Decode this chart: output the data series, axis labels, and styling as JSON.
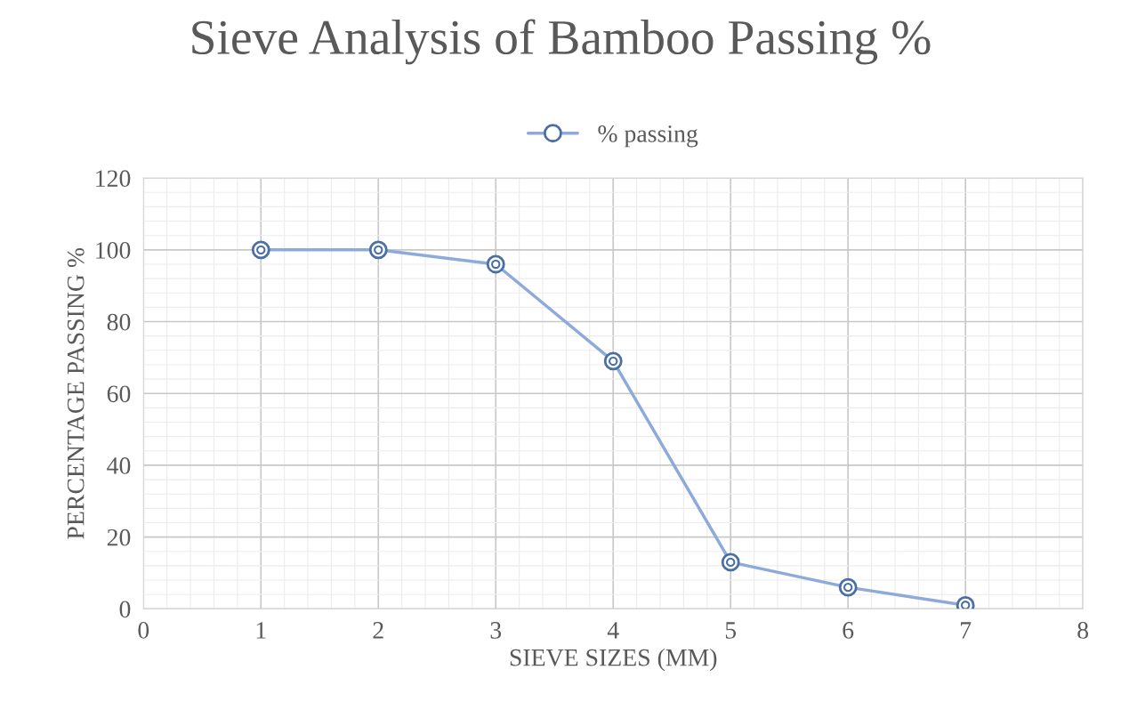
{
  "chart_data": {
    "type": "line",
    "title": "Sieve Analysis of Bamboo Passing %",
    "xlabel": "SIEVE SIZES (MM)",
    "ylabel": "PERCENTAGE PASSING %",
    "x": [
      1,
      2,
      3,
      4,
      5,
      6,
      7
    ],
    "series": [
      {
        "name": "% passing",
        "color": "#8eaadb",
        "values": [
          100,
          100,
          96,
          69,
          13,
          6,
          1
        ]
      }
    ],
    "xlim": [
      0,
      8
    ],
    "xticks": [
      0,
      1,
      2,
      3,
      4,
      5,
      6,
      7,
      8
    ],
    "ylim": [
      0,
      120
    ],
    "yticks": [
      0,
      20,
      40,
      60,
      80,
      100,
      120
    ],
    "grid": true,
    "legend": "top",
    "marker": "circle",
    "line_style": "solid"
  }
}
